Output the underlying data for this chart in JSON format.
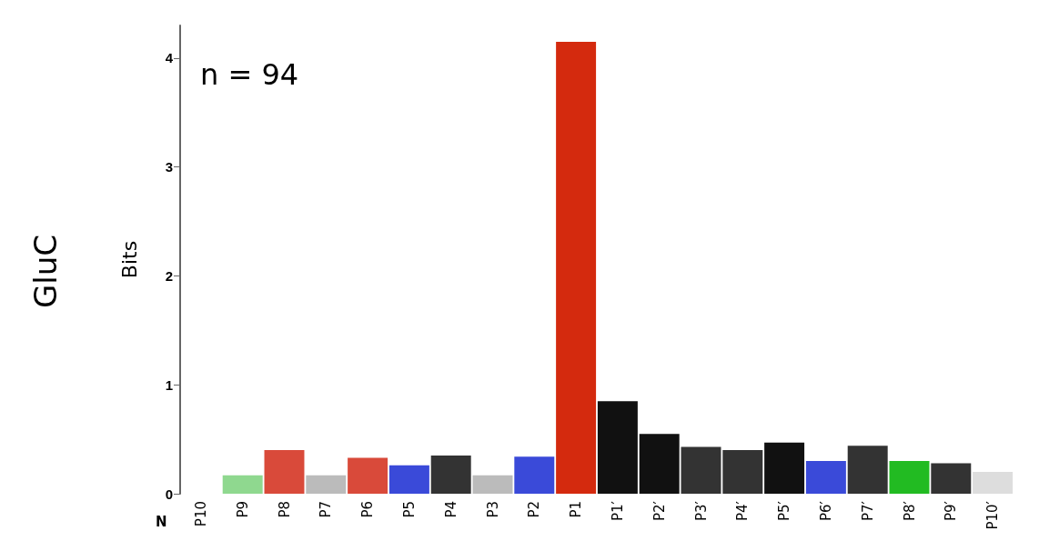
{
  "chart_data": {
    "type": "bar",
    "title": "GluC",
    "ylabel": "Bits",
    "annotations": [
      "n = 94",
      "N"
    ],
    "categories": [
      "P10",
      "P9",
      "P8",
      "P7",
      "P6",
      "P5",
      "P4",
      "P3",
      "P2",
      "P1",
      "P1′",
      "P2′",
      "P3′",
      "P4′",
      "P5′",
      "P6′",
      "P7′",
      "P8′",
      "P9′",
      "P10′"
    ],
    "values": [
      0,
      0.17,
      0.4,
      0.17,
      0.33,
      0.26,
      0.35,
      0.17,
      0.34,
      4.15,
      0.85,
      0.55,
      0.43,
      0.4,
      0.47,
      0.3,
      0.44,
      0.3,
      0.28,
      0.2
    ],
    "colors": [
      "#bbbbbb",
      "#8fd88f",
      "#d94a3a",
      "#bbbbbb",
      "#d94a3a",
      "#3a4ad9",
      "#333333",
      "#bbbbbb",
      "#3a4ad9",
      "#d42a0e",
      "#111111",
      "#111111",
      "#333333",
      "#333333",
      "#111111",
      "#3a4ad9",
      "#333333",
      "#22bb22",
      "#333333",
      "#dddddd"
    ],
    "ylim": [
      0,
      4.3
    ],
    "yticks": [
      0,
      1,
      2,
      3,
      4
    ],
    "grid": false
  }
}
